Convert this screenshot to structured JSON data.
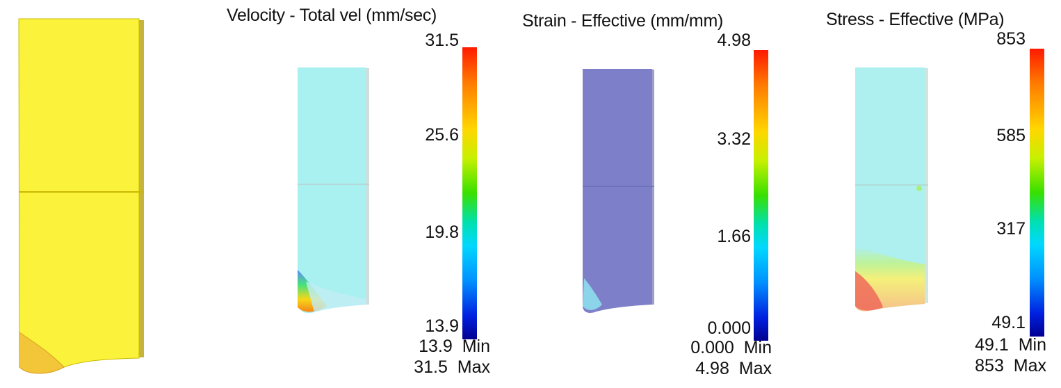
{
  "colors": {
    "workpiece_yellow": "#fbf33b",
    "velocity_field": "#a9f1f0",
    "strain_field": "#7d80c8",
    "stress_field": "#aef0ef"
  },
  "panels": [
    {
      "title": "Velocity - Total vel (mm/sec)",
      "ticks": [
        "31.5",
        "25.6",
        "19.8",
        "13.9"
      ],
      "min_value": "13.9",
      "min_label": "Min",
      "max_value": "31.5",
      "max_label": "Max"
    },
    {
      "title": "Strain - Effective (mm/mm)",
      "ticks": [
        "4.98",
        "3.32",
        "1.66",
        "0.000"
      ],
      "min_value": "0.000",
      "min_label": "Min",
      "max_value": "4.98",
      "max_label": "Max"
    },
    {
      "title": "Stress - Effective (MPa)",
      "ticks": [
        "853",
        "585",
        "317",
        "49.1"
      ],
      "min_value": "49.1",
      "min_label": "Min",
      "max_value": "853",
      "max_label": "Max"
    }
  ]
}
